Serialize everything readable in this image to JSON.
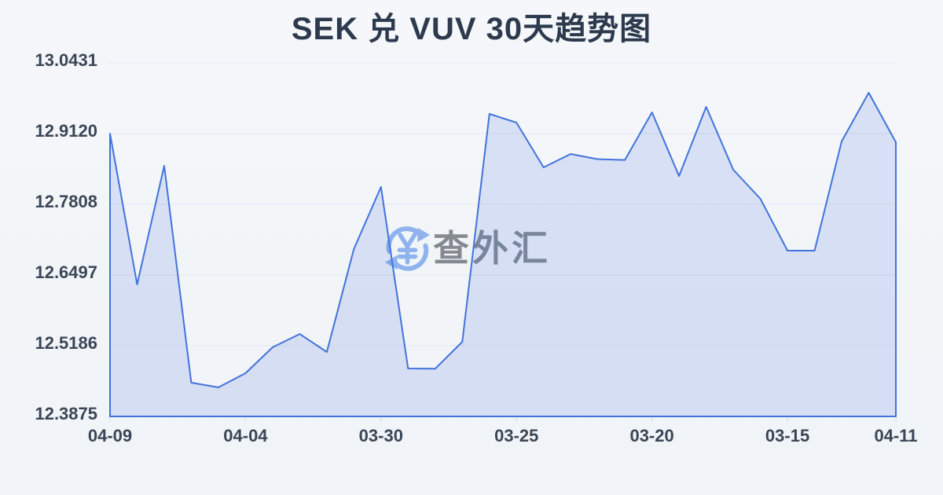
{
  "page": {
    "background_top": "#f5f7fa",
    "background_bottom": "#f0f3f7"
  },
  "chart_data": {
    "type": "area",
    "title": "SEK 兑 VUV 30天趋势图",
    "xlabel": "",
    "ylabel": "",
    "ylim": [
      12.3875,
      13.0431
    ],
    "y_tick_labels": [
      "13.0431",
      "12.9120",
      "12.7808",
      "12.6497",
      "12.5186",
      "12.3875"
    ],
    "x_tick_labels": [
      "04-09",
      "04-04",
      "03-30",
      "03-25",
      "03-20",
      "03-15",
      "04-11"
    ],
    "x_tick_indices": [
      0,
      5,
      10,
      15,
      20,
      25,
      29
    ],
    "n_points": 30,
    "values": [
      12.912,
      12.6322,
      12.8522,
      12.4501,
      12.4414,
      12.4676,
      12.5157,
      12.5404,
      12.5069,
      12.6978,
      12.8129,
      12.4763,
      12.476,
      12.5259,
      12.9484,
      12.9324,
      12.8493,
      12.8741,
      12.8645,
      12.863,
      12.9513,
      12.8333,
      12.9615,
      12.8449,
      12.791,
      12.6949,
      12.6949,
      12.8974,
      12.9877,
      12.8959
    ],
    "grid": "horizontal",
    "legend": "none",
    "colors": {
      "title": "#2d3a4e",
      "line": "#4273dc",
      "fill": "rgba(66,115,220,0.16)",
      "gridline": "#e3e7ee",
      "tick": "#d7dce4",
      "axis_label": "#3a4656"
    }
  },
  "watermark": {
    "text": "查外汇",
    "icon": "yuan-exchange-refresh-icon",
    "icon_color": "#8fb3ee",
    "text_color": "rgba(58,66,75,0.6)"
  }
}
